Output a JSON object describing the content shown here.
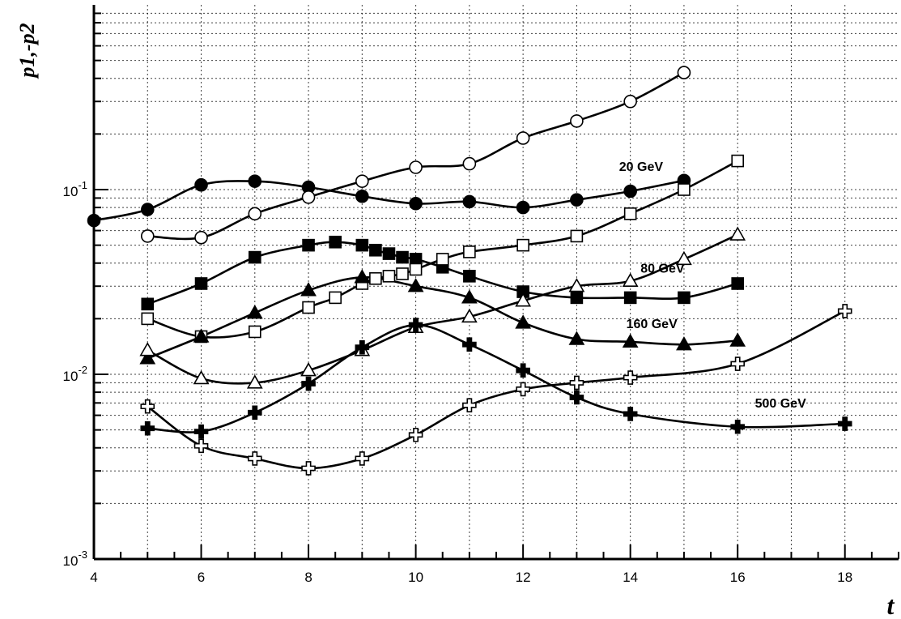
{
  "chart_data": {
    "type": "scatter",
    "title": "",
    "xlabel": "t",
    "ylabel": "p1,-p2",
    "xlim": [
      4,
      19
    ],
    "ylim": [
      0.001,
      1
    ],
    "yscale": "log",
    "grid": true,
    "x_ticks": [
      4,
      6,
      8,
      10,
      12,
      14,
      16,
      18
    ],
    "y_ticks": [
      {
        "value": 0.001,
        "base": "10",
        "exp": "-3"
      },
      {
        "value": 0.01,
        "base": "10",
        "exp": "-2"
      },
      {
        "value": 0.1,
        "base": "10",
        "exp": "-1"
      }
    ],
    "series": [
      {
        "key": "20gev_filled",
        "marker": "circle-filled",
        "x": [
          4,
          5,
          6,
          7,
          8,
          9,
          10,
          11,
          12,
          13,
          14,
          15
        ],
        "y": [
          0.068,
          0.078,
          0.106,
          0.111,
          0.103,
          0.092,
          0.084,
          0.086,
          0.08,
          0.088,
          0.098,
          0.112
        ]
      },
      {
        "key": "20gev_open",
        "marker": "circle-open",
        "x": [
          5,
          6,
          7,
          8,
          9,
          10,
          11,
          12,
          13,
          14,
          15
        ],
        "y": [
          0.056,
          0.055,
          0.074,
          0.091,
          0.111,
          0.132,
          0.138,
          0.19,
          0.235,
          0.3,
          0.43
        ]
      },
      {
        "key": "80gev_filled",
        "marker": "square-filled",
        "x": [
          5,
          6,
          7,
          8,
          8.5,
          9,
          9.25,
          9.5,
          9.75,
          10,
          10.5,
          11,
          12,
          13,
          14,
          15,
          16
        ],
        "y": [
          0.024,
          0.031,
          0.043,
          0.05,
          0.052,
          0.05,
          0.047,
          0.045,
          0.043,
          0.042,
          0.038,
          0.034,
          0.028,
          0.026,
          0.026,
          0.026,
          0.031
        ]
      },
      {
        "key": "80gev_open",
        "marker": "square-open",
        "x": [
          5,
          6,
          7,
          8,
          8.5,
          9,
          9.25,
          9.5,
          9.75,
          10,
          10.5,
          11,
          12,
          13,
          14,
          15,
          16
        ],
        "y": [
          0.02,
          0.016,
          0.017,
          0.023,
          0.026,
          0.031,
          0.033,
          0.034,
          0.035,
          0.037,
          0.042,
          0.046,
          0.05,
          0.056,
          0.074,
          0.1,
          0.143
        ]
      },
      {
        "key": "160gev_filled",
        "marker": "triangle-filled",
        "x": [
          5,
          6,
          7,
          8,
          9,
          10,
          11,
          12,
          13,
          14,
          15,
          16
        ],
        "y": [
          0.0122,
          0.016,
          0.0215,
          0.0285,
          0.0335,
          0.03,
          0.026,
          0.019,
          0.0155,
          0.015,
          0.0145,
          0.0152
        ]
      },
      {
        "key": "160gev_open",
        "marker": "triangle-open",
        "x": [
          5,
          6,
          7,
          8,
          9,
          10,
          11,
          12,
          13,
          14,
          15,
          16
        ],
        "y": [
          0.0135,
          0.0095,
          0.009,
          0.0105,
          0.0135,
          0.018,
          0.0205,
          0.025,
          0.03,
          0.032,
          0.042,
          0.057
        ]
      },
      {
        "key": "500gev_filled",
        "marker": "cross-filled",
        "x": [
          5,
          6,
          7,
          8,
          9,
          10,
          11,
          12,
          13,
          14,
          16,
          18
        ],
        "y": [
          0.0051,
          0.0049,
          0.0062,
          0.0089,
          0.014,
          0.0185,
          0.0145,
          0.0105,
          0.0075,
          0.0061,
          0.0052,
          0.0054
        ]
      },
      {
        "key": "500gev_open",
        "marker": "cross-open",
        "x": [
          5,
          6,
          7,
          8,
          9,
          10,
          11,
          12,
          13,
          14,
          16,
          18
        ],
        "y": [
          0.0067,
          0.0041,
          0.0035,
          0.0031,
          0.0035,
          0.0047,
          0.0068,
          0.0083,
          0.009,
          0.0096,
          0.0114,
          0.022
        ]
      }
    ],
    "annotations": [
      {
        "text": "20 GeV",
        "x": 14.2,
        "y": 0.126
      },
      {
        "text": "80 GeV",
        "x": 14.6,
        "y": 0.0355
      },
      {
        "text": "160 GeV",
        "x": 14.4,
        "y": 0.0178
      },
      {
        "text": "500 GeV",
        "x": 16.8,
        "y": 0.0066
      }
    ]
  }
}
